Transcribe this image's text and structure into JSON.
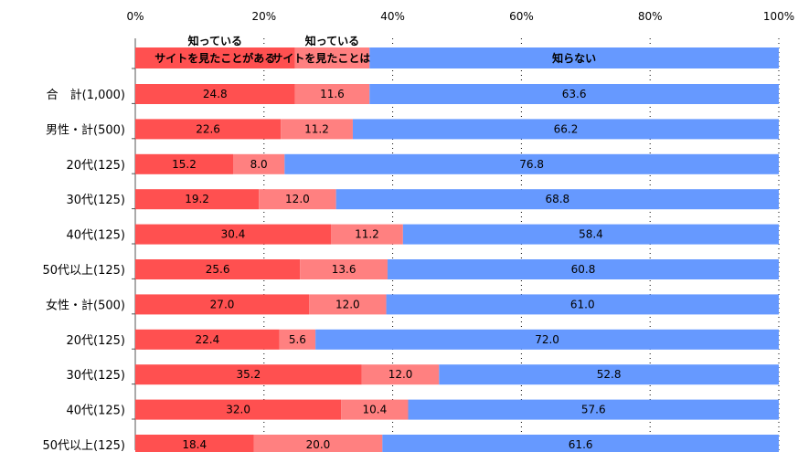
{
  "chart_data": {
    "type": "bar",
    "orientation": "horizontal",
    "stacked": true,
    "percent": true,
    "xlim": [
      0,
      100
    ],
    "x_ticks": [
      "0%",
      "20%",
      "40%",
      "60%",
      "80%",
      "100%"
    ],
    "grid": "vertical dotted",
    "legend_position": "top (inline stacked bar)",
    "categories": [
      "合　計(1,000)",
      "男性・計(500)",
      "20代(125)",
      "30代(125)",
      "40代(125)",
      "50代以上(125)",
      "女性・計(500)",
      "20代(125)",
      "30代(125)",
      "40代(125)",
      "50代以上(125)"
    ],
    "series": [
      {
        "name": "知っている サイトを見たことがある",
        "name_lines": [
          "知っている",
          "サイトを見たことがある"
        ],
        "color": "#ff5050",
        "values": [
          24.8,
          22.6,
          15.2,
          19.2,
          30.4,
          25.6,
          27.0,
          22.4,
          35.2,
          32.0,
          18.4
        ],
        "labels": [
          "24.8",
          "22.6",
          "15.2",
          "19.2",
          "30.4",
          "25.6",
          "27.0",
          "22.4",
          "35.2",
          "32.0",
          "18.4"
        ]
      },
      {
        "name": "知っている サイトを見たことはない",
        "name_lines": [
          "知っている",
          "サイトを見たことはない"
        ],
        "color": "#ff8080",
        "values": [
          11.6,
          11.2,
          8.0,
          12.0,
          11.2,
          13.6,
          12.0,
          5.6,
          12.0,
          10.4,
          20.0
        ],
        "labels": [
          "11.6",
          "11.2",
          "8.0",
          "12.0",
          "11.2",
          "13.6",
          "12.0",
          "5.6",
          "12.0",
          "10.4",
          "20.0"
        ]
      },
      {
        "name": "知らない",
        "name_lines": [
          "",
          "知らない"
        ],
        "color": "#6699ff",
        "values": [
          63.6,
          66.2,
          76.8,
          68.8,
          58.4,
          60.8,
          61.0,
          72.0,
          52.8,
          57.6,
          61.6
        ],
        "labels": [
          "63.6",
          "66.2",
          "76.8",
          "68.8",
          "58.4",
          "60.8",
          "61.0",
          "72.0",
          "52.8",
          "57.6",
          "61.6"
        ]
      }
    ]
  }
}
